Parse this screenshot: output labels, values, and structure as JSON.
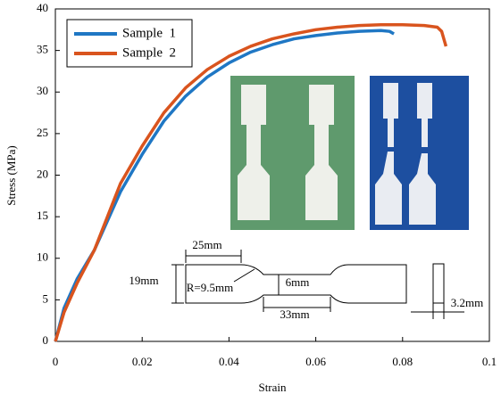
{
  "chart_data": {
    "type": "line",
    "xlabel": "Strain",
    "ylabel": "Stress (MPa)",
    "xlim": [
      0,
      0.1
    ],
    "xticks": [
      0,
      0.02,
      0.04,
      0.06,
      0.08,
      0.1
    ],
    "ylim": [
      0,
      40
    ],
    "yticks": [
      0,
      5,
      10,
      15,
      20,
      25,
      30,
      35,
      40
    ],
    "legend": "upper left",
    "series": [
      {
        "name": "Sample  1",
        "color": "#1f77c4",
        "x": [
          0,
          0.002,
          0.005,
          0.009,
          0.012,
          0.015,
          0.02,
          0.025,
          0.03,
          0.035,
          0.04,
          0.045,
          0.05,
          0.055,
          0.06,
          0.065,
          0.07,
          0.075,
          0.077,
          0.078
        ],
        "values": [
          0,
          4,
          7.5,
          11,
          14.5,
          18,
          22.5,
          26.5,
          29.5,
          31.8,
          33.5,
          34.8,
          35.7,
          36.4,
          36.8,
          37.1,
          37.3,
          37.4,
          37.3,
          37.0
        ]
      },
      {
        "name": "Sample  2",
        "color": "#d9541e",
        "x": [
          0,
          0.002,
          0.005,
          0.009,
          0.012,
          0.015,
          0.02,
          0.025,
          0.03,
          0.035,
          0.04,
          0.045,
          0.05,
          0.055,
          0.06,
          0.065,
          0.07,
          0.075,
          0.08,
          0.085,
          0.088,
          0.089,
          0.09
        ],
        "values": [
          0,
          3.5,
          7,
          11,
          15,
          19,
          23.5,
          27.5,
          30.5,
          32.7,
          34.3,
          35.5,
          36.4,
          37,
          37.5,
          37.8,
          38.0,
          38.1,
          38.1,
          38.0,
          37.8,
          37.3,
          35.5
        ]
      }
    ],
    "annotations": [
      "25mm",
      "19mm",
      "R=9.5mm",
      "6mm",
      "33mm",
      "3.2mm"
    ]
  }
}
